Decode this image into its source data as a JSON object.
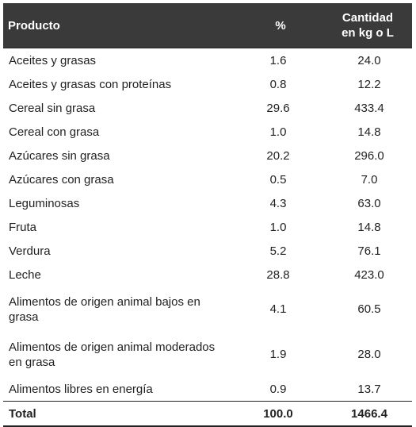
{
  "table": {
    "headers": {
      "producto": "Producto",
      "pct": "%",
      "cantidad_line1": "Cantidad",
      "cantidad_line2": "en kg o L"
    },
    "rows": [
      {
        "producto": "Aceites y grasas",
        "pct": "1.6",
        "cantidad": "24.0"
      },
      {
        "producto": "Aceites y grasas con proteínas",
        "pct": "0.8",
        "cantidad": "12.2"
      },
      {
        "producto": "Cereal sin grasa",
        "pct": "29.6",
        "cantidad": "433.4"
      },
      {
        "producto": "Cereal con grasa",
        "pct": "1.0",
        "cantidad": "14.8"
      },
      {
        "producto": "Azúcares sin grasa",
        "pct": "20.2",
        "cantidad": "296.0"
      },
      {
        "producto": "Azúcares con grasa",
        "pct": "0.5",
        "cantidad": "7.0"
      },
      {
        "producto": "Leguminosas",
        "pct": "4.3",
        "cantidad": "63.0"
      },
      {
        "producto": "Fruta",
        "pct": "1.0",
        "cantidad": "14.8"
      },
      {
        "producto": "Verdura",
        "pct": "5.2",
        "cantidad": "76.1"
      },
      {
        "producto": "Leche",
        "pct": "28.8",
        "cantidad": "423.0"
      },
      {
        "producto": "Alimentos de origen animal bajos en grasa",
        "pct": "4.1",
        "cantidad": "60.5"
      },
      {
        "producto": "Alimentos de origen animal moderados en grasa",
        "pct": "1.9",
        "cantidad": "28.0"
      },
      {
        "producto": "Alimentos libres en energía",
        "pct": "0.9",
        "cantidad": "13.7"
      }
    ],
    "total": {
      "producto": "Total",
      "pct": "100.0",
      "cantidad": "1466.4"
    }
  }
}
